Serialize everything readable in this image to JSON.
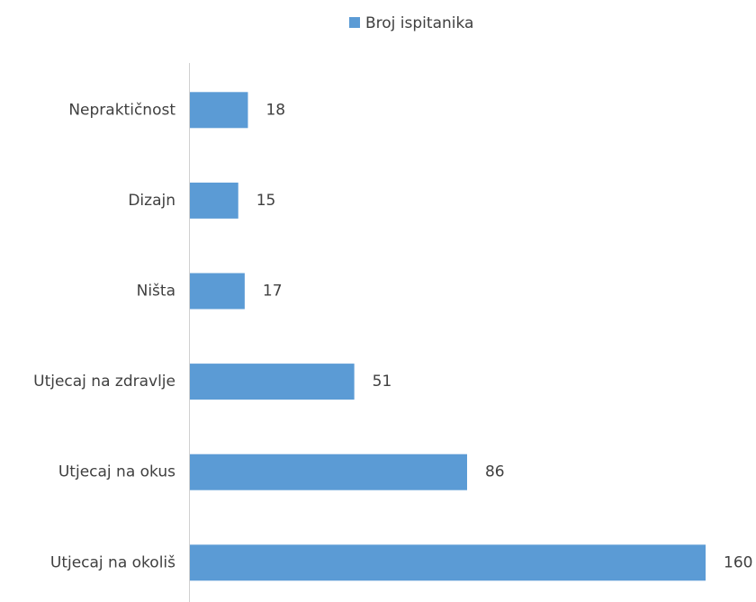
{
  "chart_data": {
    "type": "hbar",
    "categories": [
      "Nepraktičnost",
      "Dizajn",
      "Ništa",
      "Utjecaj na zdravlje",
      "Utjecaj na okus",
      "Utjecaj na okoliš"
    ],
    "series": [
      {
        "name": "Broj ispitanika",
        "color": "#5b9bd5",
        "values": [
          18,
          15,
          17,
          51,
          86,
          160
        ]
      }
    ],
    "legend": "top"
  }
}
